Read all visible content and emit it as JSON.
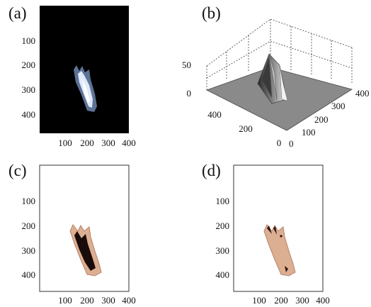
{
  "panels": {
    "a": {
      "label": "(a)",
      "x_ticks": [
        "100",
        "200",
        "300",
        "400"
      ],
      "y_ticks": [
        "100",
        "200",
        "300",
        "400"
      ]
    },
    "b": {
      "label": "(b)",
      "z_ticks": [
        "50",
        "0"
      ],
      "left_ticks": [
        "400",
        "200",
        "0"
      ],
      "right_ticks": [
        "400",
        "300",
        "200",
        "100",
        "0"
      ]
    },
    "c": {
      "label": "(c)",
      "x_ticks": [
        "100",
        "200",
        "300",
        "400"
      ],
      "y_ticks": [
        "100",
        "200",
        "300",
        "400"
      ]
    },
    "d": {
      "label": "(d)",
      "x_ticks": [
        "100",
        "200",
        "300",
        "400"
      ],
      "y_ticks": [
        "100",
        "200",
        "300",
        "400"
      ]
    }
  },
  "colors": {
    "skin": "#dcae92",
    "skin_edge": "#b88468",
    "dark_region": "#1a0c08",
    "surface": "#8c8c8c",
    "background_a": "#000000"
  }
}
